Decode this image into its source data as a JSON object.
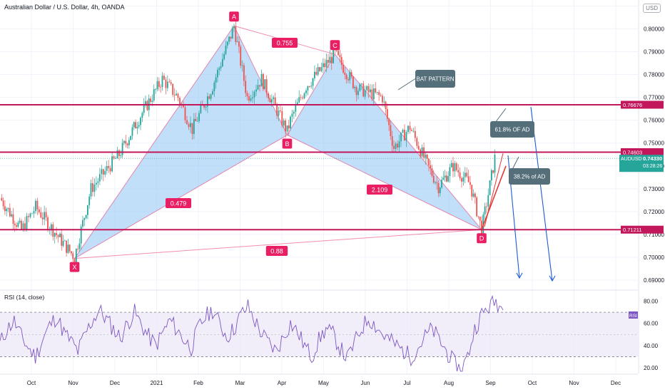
{
  "header": {
    "symbol_title": "Australian Dollar / U.S. Dollar, 4h, OANDA",
    "currency": "USD"
  },
  "rsi_header": {
    "title": "RSI (14, close)",
    "badge": "RSI"
  },
  "colors": {
    "up": "#26a69a",
    "down": "#ef5350",
    "level": "#c2185b",
    "pattern_fill": "#90c4f5",
    "pattern_line": "#e91e63",
    "rsi_line": "#7e57c2",
    "rsi_band": "#ede7f6",
    "arrow": "#1e5bd6",
    "callout": "#546e7a",
    "price_tag": "#26a69a"
  },
  "chart_data": [
    {
      "type": "candlestick",
      "title": "Australian Dollar / U.S. Dollar, 4h, OANDA",
      "x_ticks": [
        "Oct",
        "Nov",
        "Dec",
        "2021",
        "Feb",
        "Mar",
        "Apr",
        "May",
        "Jun",
        "Jul",
        "Aug",
        "Sep",
        "Oct",
        "Nov",
        "Dec"
      ],
      "y_ticks": [
        "0.69000",
        "0.70000",
        "0.71000",
        "0.72000",
        "0.73000",
        "0.74000",
        "0.75000",
        "0.76000",
        "0.77000",
        "0.78000",
        "0.79000",
        "0.80000",
        "0.81000"
      ],
      "ylim": [
        0.6866,
        0.8126
      ],
      "price_path": [
        {
          "x": "mid-Sep 2020",
          "y": 0.726
        },
        {
          "x": "early Oct 2020",
          "y": 0.712
        },
        {
          "x": "Oct 2020",
          "y": 0.722
        },
        {
          "x": "late Oct 2020",
          "y": 0.708
        },
        {
          "x": "early Nov 2020",
          "y": 0.7
        },
        {
          "x": "mid Nov 2020",
          "y": 0.73
        },
        {
          "x": "Dec 2020",
          "y": 0.745
        },
        {
          "x": "late Dec 2020",
          "y": 0.762
        },
        {
          "x": "early Jan 2021",
          "y": 0.778
        },
        {
          "x": "mid Jan 2021",
          "y": 0.77
        },
        {
          "x": "late Jan 2021",
          "y": 0.756
        },
        {
          "x": "Feb 2021",
          "y": 0.775
        },
        {
          "x": "late Feb 2021",
          "y": 0.801
        },
        {
          "x": "early Mar 2021",
          "y": 0.77
        },
        {
          "x": "mid Mar 2021",
          "y": 0.778
        },
        {
          "x": "late Mar 2021",
          "y": 0.755
        },
        {
          "x": "early Apr 2021",
          "y": 0.76
        },
        {
          "x": "mid Apr 2021",
          "y": 0.775
        },
        {
          "x": "early May 2021",
          "y": 0.789
        },
        {
          "x": "late May 2021",
          "y": 0.774
        },
        {
          "x": "mid Jun 2021",
          "y": 0.77
        },
        {
          "x": "late Jun 2021",
          "y": 0.748
        },
        {
          "x": "early Jul 2021",
          "y": 0.757
        },
        {
          "x": "mid Jul 2021",
          "y": 0.742
        },
        {
          "x": "late Jul 2021",
          "y": 0.731
        },
        {
          "x": "early Aug 2021",
          "y": 0.74
        },
        {
          "x": "mid Aug 2021",
          "y": 0.732
        },
        {
          "x": "late Aug 2021",
          "y": 0.712
        },
        {
          "x": "early Sep 2021",
          "y": 0.7433
        }
      ],
      "price_labels": [
        {
          "text": "0.76676",
          "value": 0.76676,
          "color": "#c2185b"
        },
        {
          "text": "0.74603",
          "value": 0.74603,
          "color": "#c2185b"
        },
        {
          "text": "AUDUSD",
          "value": 0.7433,
          "color": "#26a69a"
        },
        {
          "text": "0.74330",
          "value": 0.7433,
          "color": "#26a69a"
        },
        {
          "text": "03:28:26",
          "value": 0.7433,
          "color": "#26a69a"
        },
        {
          "text": "0.71211",
          "value": 0.71211,
          "color": "#c2185b"
        }
      ],
      "horizontal_levels": [
        0.76676,
        0.74603,
        0.71211
      ],
      "harmonic_points": [
        {
          "label": "X",
          "x": "early Nov 2020",
          "y": 0.6995
        },
        {
          "label": "A",
          "x": "late Feb 2021",
          "y": 0.8013
        },
        {
          "label": "B",
          "x": "late Mar 2021",
          "y": 0.7535
        },
        {
          "label": "C",
          "x": "early May 2021",
          "y": 0.7888
        },
        {
          "label": "D",
          "x": "late Aug 2021",
          "y": 0.7121
        }
      ],
      "ratio_labels": [
        "0.755",
        "0.479",
        "2.109",
        "0.88"
      ],
      "annotations": [
        "BAT PATTERN",
        "61.8% OF AD",
        "38.2% of AD"
      ]
    },
    {
      "type": "line",
      "title": "RSI (14, close)",
      "y_ticks": [
        "20.00",
        "40.00",
        "60.00",
        "80.00"
      ],
      "ylim": [
        15,
        88
      ],
      "bands": [
        30,
        70
      ],
      "series": [
        {
          "values": [
            42,
            55,
            62,
            48,
            38,
            30,
            45,
            58,
            66,
            52,
            44,
            35,
            50,
            62,
            72,
            64,
            55,
            47,
            60,
            70,
            58,
            48,
            40,
            52,
            63,
            54,
            45,
            38,
            56,
            66,
            72,
            60,
            48,
            55,
            68,
            75,
            62,
            50,
            42,
            35,
            48,
            60,
            52,
            40,
            30,
            45,
            55,
            50,
            38,
            28,
            42,
            55,
            65,
            58,
            50,
            45,
            40,
            35,
            30,
            38,
            48,
            55,
            45,
            35,
            25,
            18,
            30,
            55,
            68,
            75,
            80,
            72
          ]
        }
      ]
    }
  ]
}
